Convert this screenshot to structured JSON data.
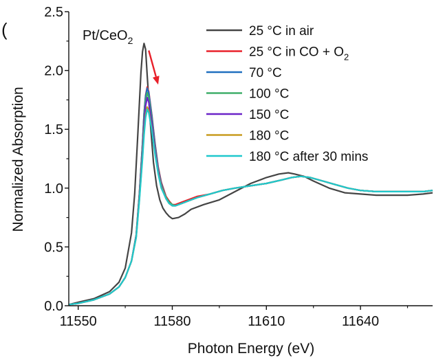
{
  "panel_label_visible": "(  )",
  "chart_data": {
    "type": "line",
    "title": "",
    "annotation": {
      "text": "Pt/CeO",
      "subscript": "2"
    },
    "xlabel": "Photon Energy (eV)",
    "ylabel": "Normalized Absorption",
    "xlim": [
      11547,
      11663
    ],
    "ylim": [
      0.0,
      2.5
    ],
    "xticks": [
      11550,
      11580,
      11610,
      11640
    ],
    "xtick_labels": [
      "11550",
      "11580",
      "11610",
      "11640"
    ],
    "yticks": [
      0.0,
      0.5,
      1.0,
      1.5,
      2.0,
      2.5
    ],
    "ytick_labels": [
      "0.0",
      "0.5",
      "1.0",
      "1.5",
      "2.0",
      "2.5"
    ],
    "grid": false,
    "legend_position": "top-right",
    "arrow": {
      "from": [
        11572.5,
        2.17
      ],
      "to": [
        11575.5,
        1.88
      ],
      "color": "#e8202a"
    },
    "series": [
      {
        "name": "25 °C in air",
        "label_main": "25 °C in air",
        "label_sub": "",
        "label_tail": "",
        "color": "#444444",
        "x": [
          11547,
          11550,
          11555,
          11560,
          11563,
          11565,
          11567,
          11568,
          11569,
          11570,
          11570.5,
          11571,
          11571.5,
          11572,
          11573,
          11574,
          11575,
          11576,
          11577,
          11578,
          11579,
          11580,
          11582,
          11584,
          11586,
          11590,
          11595,
          11600,
          11605,
          11610,
          11614,
          11617,
          11619,
          11622,
          11625,
          11630,
          11635,
          11640,
          11645,
          11650,
          11655,
          11660,
          11663
        ],
        "y": [
          0.01,
          0.03,
          0.06,
          0.12,
          0.2,
          0.32,
          0.62,
          0.95,
          1.45,
          1.98,
          2.16,
          2.23,
          2.18,
          1.96,
          1.55,
          1.22,
          1.02,
          0.9,
          0.83,
          0.79,
          0.76,
          0.74,
          0.75,
          0.78,
          0.82,
          0.86,
          0.9,
          0.97,
          1.04,
          1.09,
          1.12,
          1.13,
          1.12,
          1.1,
          1.06,
          1.0,
          0.96,
          0.95,
          0.94,
          0.94,
          0.94,
          0.95,
          0.96
        ]
      },
      {
        "name": "25 °C in CO + O2",
        "label_main": "25 °C in CO + O",
        "label_sub": "2",
        "label_tail": "",
        "color": "#e8202a",
        "x": [
          11547,
          11550,
          11555,
          11560,
          11563,
          11565,
          11567,
          11568.5,
          11569.5,
          11570.5,
          11571,
          11571.5,
          11572,
          11572.5,
          11573.5,
          11574.5,
          11575.5,
          11576.5,
          11578,
          11579,
          11580,
          11581,
          11583,
          11585,
          11588,
          11592,
          11596,
          11600,
          11605,
          11610,
          11615,
          11618,
          11621,
          11624,
          11628,
          11632,
          11636,
          11640,
          11645,
          11650,
          11655,
          11660,
          11663
        ],
        "y": [
          0.01,
          0.02,
          0.05,
          0.1,
          0.16,
          0.24,
          0.38,
          0.6,
          0.95,
          1.38,
          1.63,
          1.79,
          1.86,
          1.82,
          1.62,
          1.38,
          1.18,
          1.05,
          0.93,
          0.89,
          0.86,
          0.86,
          0.88,
          0.9,
          0.93,
          0.95,
          0.98,
          1.0,
          1.02,
          1.04,
          1.07,
          1.09,
          1.1,
          1.09,
          1.06,
          1.03,
          1.0,
          0.98,
          0.97,
          0.97,
          0.97,
          0.97,
          0.98
        ]
      },
      {
        "name": "70 °C",
        "label_main": "70 °C",
        "label_sub": "",
        "label_tail": "",
        "color": "#1f6fbf",
        "x": [
          11547,
          11550,
          11555,
          11560,
          11563,
          11565,
          11567,
          11568.5,
          11569.5,
          11570.5,
          11571,
          11571.5,
          11572,
          11572.5,
          11573.5,
          11574.5,
          11575.5,
          11576.5,
          11578,
          11579,
          11580,
          11581,
          11583,
          11585,
          11588,
          11592,
          11596,
          11600,
          11605,
          11610,
          11615,
          11618,
          11621,
          11624,
          11628,
          11632,
          11636,
          11640,
          11645,
          11650,
          11655,
          11660,
          11663
        ],
        "y": [
          0.01,
          0.02,
          0.05,
          0.1,
          0.16,
          0.24,
          0.38,
          0.6,
          0.95,
          1.38,
          1.63,
          1.78,
          1.85,
          1.81,
          1.61,
          1.37,
          1.17,
          1.04,
          0.92,
          0.88,
          0.86,
          0.85,
          0.87,
          0.89,
          0.92,
          0.95,
          0.98,
          1.0,
          1.02,
          1.04,
          1.07,
          1.09,
          1.1,
          1.09,
          1.06,
          1.03,
          1.0,
          0.98,
          0.97,
          0.97,
          0.97,
          0.97,
          0.98
        ]
      },
      {
        "name": "100 °C",
        "label_main": "100 °C",
        "label_sub": "",
        "label_tail": "",
        "color": "#3fae6a",
        "x": [
          11547,
          11550,
          11555,
          11560,
          11563,
          11565,
          11567,
          11568.5,
          11569.5,
          11570.5,
          11571,
          11571.5,
          11572,
          11572.5,
          11573.5,
          11574.5,
          11575.5,
          11576.5,
          11578,
          11579,
          11580,
          11581,
          11583,
          11585,
          11588,
          11592,
          11596,
          11600,
          11605,
          11610,
          11615,
          11618,
          11621,
          11624,
          11628,
          11632,
          11636,
          11640,
          11645,
          11650,
          11655,
          11660,
          11663
        ],
        "y": [
          0.01,
          0.02,
          0.05,
          0.1,
          0.16,
          0.24,
          0.38,
          0.6,
          0.94,
          1.36,
          1.6,
          1.74,
          1.81,
          1.77,
          1.58,
          1.35,
          1.16,
          1.03,
          0.92,
          0.88,
          0.86,
          0.85,
          0.87,
          0.89,
          0.92,
          0.95,
          0.98,
          1.0,
          1.02,
          1.04,
          1.07,
          1.09,
          1.1,
          1.09,
          1.06,
          1.03,
          1.0,
          0.98,
          0.97,
          0.97,
          0.97,
          0.97,
          0.98
        ]
      },
      {
        "name": "150 °C",
        "label_main": "150 °C",
        "label_sub": "",
        "label_tail": "",
        "color": "#6a22c8",
        "x": [
          11547,
          11550,
          11555,
          11560,
          11563,
          11565,
          11567,
          11568.5,
          11569.5,
          11570.5,
          11571,
          11571.5,
          11572,
          11572.5,
          11573.5,
          11574.5,
          11575.5,
          11576.5,
          11578,
          11579,
          11580,
          11581,
          11583,
          11585,
          11588,
          11592,
          11596,
          11600,
          11605,
          11610,
          11615,
          11618,
          11621,
          11624,
          11628,
          11632,
          11636,
          11640,
          11645,
          11650,
          11655,
          11660,
          11663
        ],
        "y": [
          0.01,
          0.02,
          0.05,
          0.1,
          0.16,
          0.24,
          0.38,
          0.59,
          0.92,
          1.32,
          1.55,
          1.7,
          1.77,
          1.73,
          1.55,
          1.33,
          1.15,
          1.02,
          0.91,
          0.87,
          0.85,
          0.85,
          0.87,
          0.89,
          0.92,
          0.95,
          0.98,
          1.0,
          1.02,
          1.04,
          1.07,
          1.09,
          1.1,
          1.09,
          1.06,
          1.03,
          1.0,
          0.98,
          0.97,
          0.97,
          0.97,
          0.97,
          0.98
        ]
      },
      {
        "name": "180 °C",
        "label_main": "180 °C",
        "label_sub": "",
        "label_tail": "",
        "color": "#c89b1e",
        "x": [
          11547,
          11550,
          11555,
          11560,
          11563,
          11565,
          11567,
          11568.5,
          11569.5,
          11570.5,
          11571,
          11571.5,
          11572,
          11572.5,
          11573.5,
          11574.5,
          11575.5,
          11576.5,
          11578,
          11579,
          11580,
          11581,
          11583,
          11585,
          11588,
          11592,
          11596,
          11600,
          11605,
          11610,
          11615,
          11618,
          11621,
          11624,
          11628,
          11632,
          11636,
          11640,
          11645,
          11650,
          11655,
          11660,
          11663
        ],
        "y": [
          0.01,
          0.02,
          0.05,
          0.1,
          0.16,
          0.24,
          0.38,
          0.58,
          0.9,
          1.27,
          1.48,
          1.62,
          1.69,
          1.66,
          1.5,
          1.3,
          1.13,
          1.01,
          0.91,
          0.87,
          0.85,
          0.85,
          0.87,
          0.89,
          0.92,
          0.95,
          0.98,
          1.0,
          1.02,
          1.04,
          1.07,
          1.09,
          1.1,
          1.09,
          1.06,
          1.03,
          1.0,
          0.98,
          0.97,
          0.97,
          0.97,
          0.97,
          0.98
        ]
      },
      {
        "name": "180 °C after 30 mins",
        "label_main": "180 °C after 30 mins",
        "label_sub": "",
        "label_tail": "",
        "color": "#1ec8cc",
        "x": [
          11547,
          11550,
          11555,
          11560,
          11563,
          11565,
          11567,
          11568.5,
          11569.5,
          11570.5,
          11571,
          11571.5,
          11572,
          11572.5,
          11573.5,
          11574.5,
          11575.5,
          11576.5,
          11578,
          11579,
          11580,
          11581,
          11583,
          11585,
          11588,
          11592,
          11596,
          11600,
          11605,
          11610,
          11615,
          11618,
          11621,
          11624,
          11628,
          11632,
          11636,
          11640,
          11645,
          11650,
          11655,
          11660,
          11663
        ],
        "y": [
          0.01,
          0.02,
          0.05,
          0.1,
          0.16,
          0.24,
          0.38,
          0.58,
          0.89,
          1.25,
          1.45,
          1.6,
          1.67,
          1.64,
          1.49,
          1.29,
          1.12,
          1.0,
          0.91,
          0.87,
          0.85,
          0.85,
          0.87,
          0.89,
          0.92,
          0.95,
          0.98,
          1.0,
          1.02,
          1.04,
          1.07,
          1.09,
          1.1,
          1.09,
          1.06,
          1.03,
          1.0,
          0.98,
          0.97,
          0.97,
          0.97,
          0.97,
          0.98
        ]
      }
    ]
  }
}
